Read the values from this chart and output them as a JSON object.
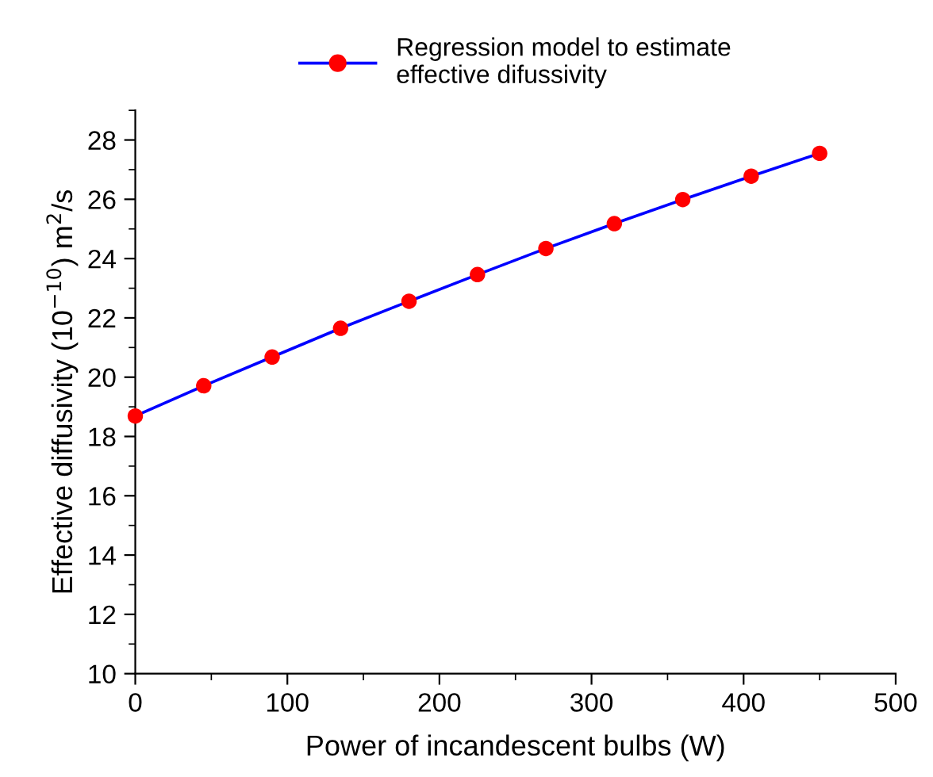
{
  "chart_data": {
    "type": "line",
    "xlabel": "Power of incandescent bulbs (W)",
    "ylabel": "Effective diffusivity (10$^{−10}$) m$^{2}$/s",
    "x": [
      0,
      45,
      90,
      135,
      180,
      225,
      270,
      315,
      360,
      405,
      450
    ],
    "series": [
      {
        "name": "Regression model to estimate\neffective difussivity",
        "color": "#0000ff",
        "colors": [
          "#ff0000",
          "#ff0000",
          "#ff0000",
          "#ff0000",
          "#ff0000",
          "#ff0000",
          "#ff0000",
          "#ff0000",
          "#ff0000",
          "#ff0000",
          "#ff0000"
        ],
        "values": [
          18.69,
          19.71,
          20.68,
          21.65,
          22.56,
          23.46,
          24.34,
          25.18,
          25.99,
          26.78,
          27.55
        ]
      }
    ],
    "xlim": [
      0,
      500
    ],
    "xticks": [
      0,
      100,
      200,
      300,
      400,
      500
    ],
    "ylim": [
      10,
      29
    ],
    "yticks": [
      10,
      12,
      14,
      16,
      18,
      20,
      22,
      24,
      26,
      28
    ],
    "marker": "circle",
    "line_style": "solid",
    "grid": false,
    "legend": "top"
  }
}
